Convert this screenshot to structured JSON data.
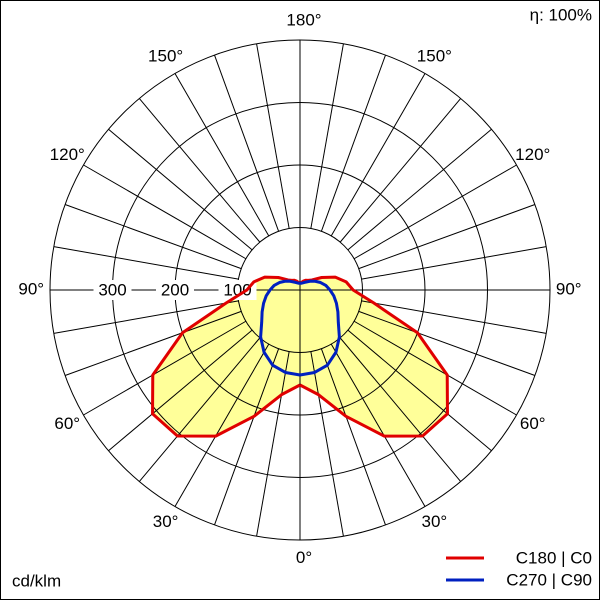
{
  "chart_data": {
    "type": "polar",
    "efficiency_label": "η: 100%",
    "unit_label": "cd/klm",
    "rlim": [
      0,
      400
    ],
    "rticks": [
      100,
      200,
      300
    ],
    "rings": [
      100,
      200,
      300,
      400
    ],
    "angle_ticks": [
      {
        "value": 0,
        "label": "0°"
      },
      {
        "value": 30,
        "label": "30°"
      },
      {
        "value": 60,
        "label": "60°"
      },
      {
        "value": 90,
        "label": "90°"
      },
      {
        "value": 120,
        "label": "120°"
      },
      {
        "value": 150,
        "label": "150°"
      },
      {
        "value": 180,
        "label": "180°"
      }
    ],
    "fill_color": "#ffff99",
    "x": [
      0,
      10,
      20,
      30,
      40,
      50,
      60,
      70,
      80,
      90,
      100,
      110,
      120,
      130,
      140,
      150,
      160,
      170,
      180
    ],
    "series": [
      {
        "name": "C180 | C0",
        "color": "#e00000",
        "values": [
          152,
          170,
          215,
          270,
          305,
          308,
          272,
          200,
          120,
          85,
          75,
          60,
          40,
          25,
          20,
          18,
          15,
          12,
          11
        ]
      },
      {
        "name": "C270 | C90",
        "color": "#0020c0",
        "values": [
          136,
          134,
          128,
          115,
          98,
          80,
          70,
          62,
          55,
          48,
          42,
          35,
          28,
          22,
          17,
          14,
          12,
          11,
          11
        ]
      }
    ]
  }
}
